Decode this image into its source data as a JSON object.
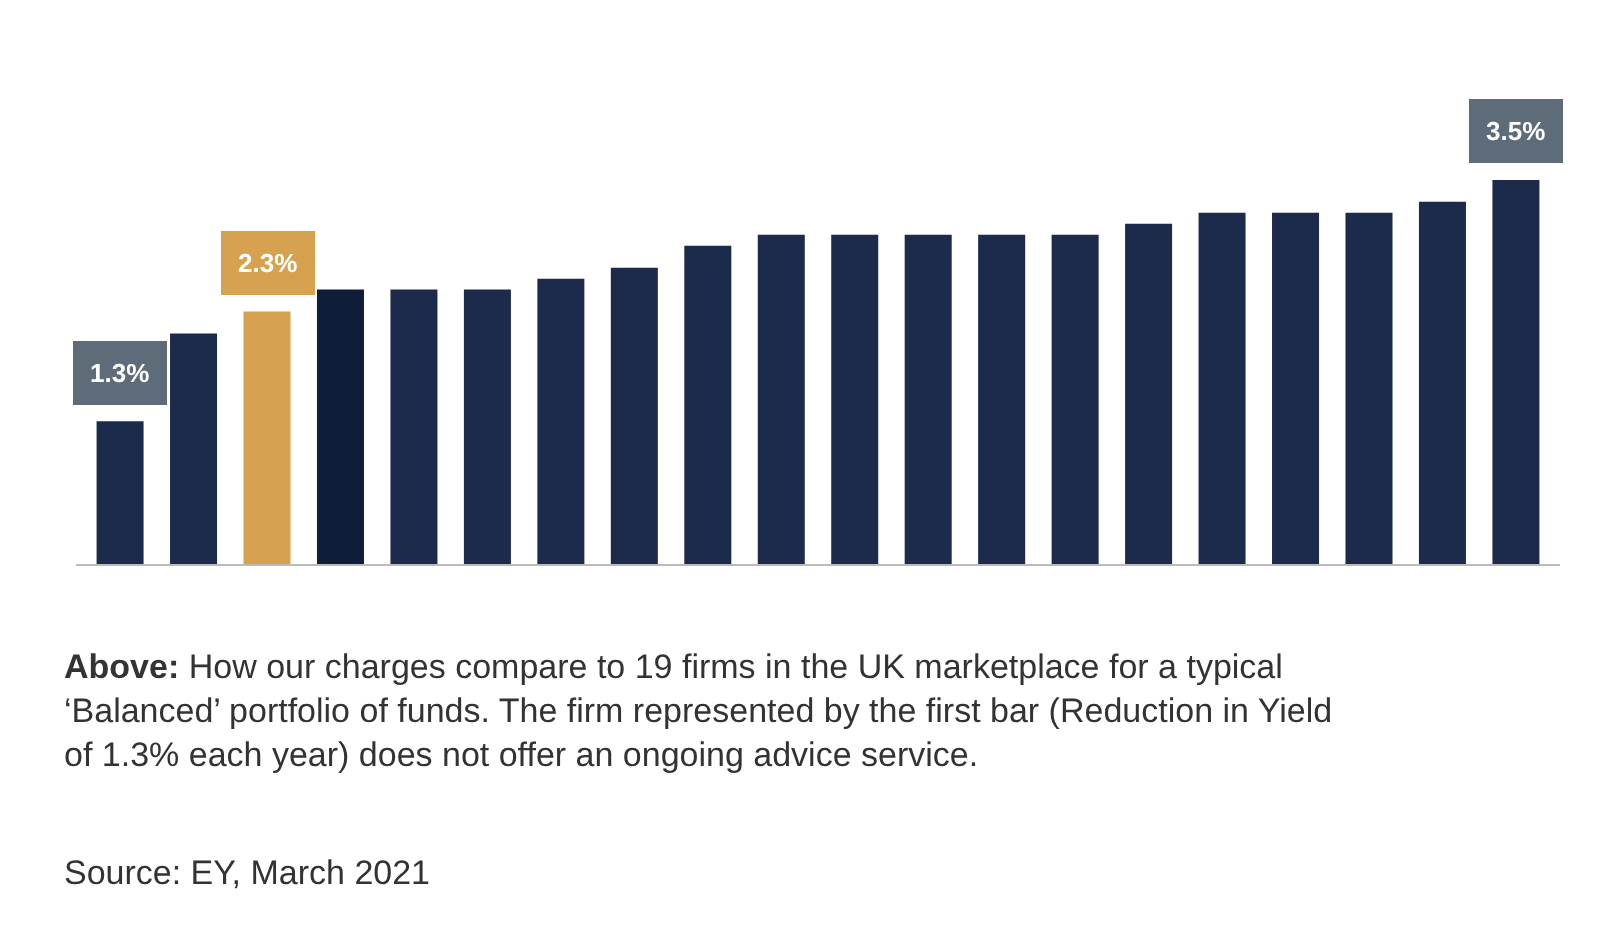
{
  "chart_data": {
    "type": "bar",
    "categories": [
      null,
      null,
      null,
      null,
      null,
      null,
      null,
      null,
      null,
      null,
      null,
      null,
      null,
      null,
      null,
      null,
      null,
      null,
      null,
      null
    ],
    "values": [
      1.3,
      2.1,
      2.3,
      2.5,
      2.5,
      2.5,
      2.6,
      2.7,
      2.9,
      3.0,
      3.0,
      3.0,
      3.0,
      3.0,
      3.1,
      3.2,
      3.2,
      3.2,
      3.3,
      3.5
    ],
    "colors": [
      "#1c2b4b",
      "#1c2b4b",
      "#d6a24f",
      "#0f1d38",
      "#1c2b4b",
      "#1c2b4b",
      "#1c2b4b",
      "#1c2b4b",
      "#1c2b4b",
      "#1c2b4b",
      "#1c2b4b",
      "#1c2b4b",
      "#1c2b4b",
      "#1c2b4b",
      "#1c2b4b",
      "#1c2b4b",
      "#1c2b4b",
      "#1c2b4b",
      "#1c2b4b",
      "#1c2b4b"
    ],
    "value_labels": [
      "1.3%",
      null,
      "2.3%",
      null,
      null,
      null,
      null,
      null,
      null,
      null,
      null,
      null,
      null,
      null,
      null,
      null,
      null,
      null,
      null,
      "3.5%"
    ],
    "annotations": [
      "Above: How our charges compare to 19 firms in the UK marketplace for a typical ‘Balanced’ portfolio of funds. The firm represented by the first bar (Reduction in Yield of 1.3% each year) does not offer an ongoing advice service.",
      "Source: EY, March 2021"
    ]
  }
}
